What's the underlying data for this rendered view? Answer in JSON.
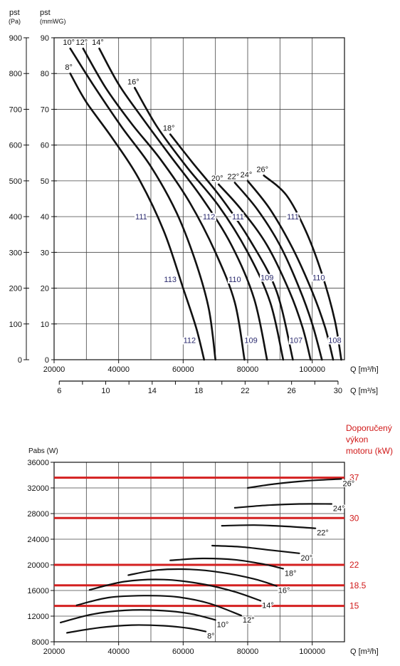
{
  "chart_data": [
    {
      "type": "line",
      "ylabel_pa": "pst\n(Pa)",
      "ylabel_mm": "pst\n(mmWG)",
      "xlabel": "Q [m³/h]",
      "x2label": "Q [m³/s]",
      "xlim": [
        20000,
        110000
      ],
      "ylim_pa": [
        0,
        900
      ],
      "ylim_mm": [
        0,
        90
      ],
      "xticks": [
        20000,
        40000,
        60000,
        80000,
        100000
      ],
      "x2ticks": [
        6,
        10,
        14,
        18,
        22,
        26,
        30
      ],
      "yticks_pa": [
        0,
        100,
        200,
        300,
        400,
        500,
        600,
        700,
        800,
        900
      ],
      "yticks_mm": [
        0,
        10,
        20,
        30,
        40,
        50,
        60,
        70,
        80,
        90
      ],
      "grid": true,
      "series": [
        {
          "name": "8°",
          "points": [
            [
              25000,
              800
            ],
            [
              30000,
              720
            ],
            [
              38000,
              620
            ],
            [
              46000,
              510
            ],
            [
              54000,
              360
            ],
            [
              60000,
              200
            ],
            [
              64000,
              90
            ],
            [
              66500,
              0
            ]
          ]
        },
        {
          "name": "10°",
          "points": [
            [
              25000,
              870
            ],
            [
              32000,
              770
            ],
            [
              41000,
              650
            ],
            [
              50000,
              540
            ],
            [
              58000,
              410
            ],
            [
              64000,
              270
            ],
            [
              68000,
              140
            ],
            [
              70000,
              0
            ]
          ]
        },
        {
          "name": "12°",
          "points": [
            [
              29000,
              870
            ],
            [
              36000,
              760
            ],
            [
              44000,
              660
            ],
            [
              53000,
              560
            ],
            [
              62000,
              440
            ],
            [
              70000,
              300
            ],
            [
              76000,
              160
            ],
            [
              79000,
              0
            ]
          ]
        },
        {
          "name": "14°",
          "points": [
            [
              34000,
              870
            ],
            [
              40000,
              770
            ],
            [
              47000,
              680
            ],
            [
              56000,
              570
            ],
            [
              66000,
              450
            ],
            [
              75000,
              320
            ],
            [
              82000,
              170
            ],
            [
              86000,
              0
            ]
          ]
        },
        {
          "name": "16°",
          "points": [
            [
              45000,
              760
            ],
            [
              52000,
              650
            ],
            [
              61000,
              540
            ],
            [
              71000,
              430
            ],
            [
              80000,
              300
            ],
            [
              87000,
              160
            ],
            [
              91000,
              0
            ]
          ]
        },
        {
          "name": "18°",
          "points": [
            [
              56000,
              630
            ],
            [
              63000,
              550
            ],
            [
              72000,
              450
            ],
            [
              81000,
              330
            ],
            [
              89000,
              190
            ],
            [
              94000,
              0
            ]
          ]
        },
        {
          "name": "20°",
          "points": [
            [
              71000,
              490
            ],
            [
              78000,
              420
            ],
            [
              86000,
              320
            ],
            [
              93000,
              190
            ],
            [
              97000,
              90
            ],
            [
              99500,
              0
            ]
          ]
        },
        {
          "name": "22°",
          "points": [
            [
              76000,
              495
            ],
            [
              83000,
              420
            ],
            [
              90000,
              320
            ],
            [
              96000,
              200
            ],
            [
              100000,
              100
            ],
            [
              103000,
              0
            ]
          ]
        },
        {
          "name": "24°",
          "points": [
            [
              80000,
              500
            ],
            [
              87000,
              420
            ],
            [
              94000,
              310
            ],
            [
              100000,
              190
            ],
            [
              104000,
              90
            ],
            [
              106500,
              0
            ]
          ]
        },
        {
          "name": "26°",
          "points": [
            [
              85000,
              515
            ],
            [
              92000,
              460
            ],
            [
              98000,
              360
            ],
            [
              103000,
              240
            ],
            [
              107000,
              110
            ],
            [
              109000,
              0
            ]
          ]
        }
      ],
      "curve_labels": [
        {
          "text": "111",
          "x": 47000,
          "y": 400
        },
        {
          "text": "113",
          "x": 56000,
          "y": 225
        },
        {
          "text": "112",
          "x": 62000,
          "y": 55
        },
        {
          "text": "112",
          "x": 68000,
          "y": 400
        },
        {
          "text": "111",
          "x": 77000,
          "y": 400
        },
        {
          "text": "110",
          "x": 76000,
          "y": 225
        },
        {
          "text": "109",
          "x": 81000,
          "y": 55
        },
        {
          "text": "109",
          "x": 86000,
          "y": 230
        },
        {
          "text": "107",
          "x": 95000,
          "y": 55
        },
        {
          "text": "111",
          "x": 94000,
          "y": 400
        },
        {
          "text": "110",
          "x": 102000,
          "y": 230
        },
        {
          "text": "108",
          "x": 107000,
          "y": 55
        }
      ]
    },
    {
      "type": "line",
      "ylabel": "Pabs (W)",
      "xlabel": "Q [m³/h]",
      "xlim": [
        20000,
        110000
      ],
      "ylim": [
        8000,
        36000
      ],
      "xticks": [
        20000,
        40000,
        60000,
        80000,
        100000
      ],
      "yticks": [
        8000,
        12000,
        16000,
        20000,
        24000,
        28000,
        32000,
        36000
      ],
      "grid": true,
      "right_axis_title": [
        "Doporučený",
        "výkon",
        "motoru (kW)"
      ],
      "motor_lines": [
        {
          "label": "37",
          "value": 33600
        },
        {
          "label": "30",
          "value": 27300
        },
        {
          "label": "22",
          "value": 20000
        },
        {
          "label": "18.5",
          "value": 16800
        },
        {
          "label": "15",
          "value": 13600
        }
      ],
      "series": [
        {
          "name": "8°",
          "points": [
            [
              24000,
              9400
            ],
            [
              34000,
              10200
            ],
            [
              44000,
              10600
            ],
            [
              54000,
              10500
            ],
            [
              62000,
              10100
            ],
            [
              67000,
              9600
            ]
          ]
        },
        {
          "name": "10°",
          "points": [
            [
              22000,
              11000
            ],
            [
              32000,
              12300
            ],
            [
              42000,
              12900
            ],
            [
              52000,
              12900
            ],
            [
              62000,
              12400
            ],
            [
              70000,
              11400
            ]
          ]
        },
        {
          "name": "12°",
          "points": [
            [
              27000,
              13700
            ],
            [
              37000,
              14900
            ],
            [
              48000,
              15200
            ],
            [
              58000,
              15000
            ],
            [
              68000,
              14000
            ],
            [
              78000,
              12100
            ]
          ]
        },
        {
          "name": "14°",
          "points": [
            [
              31000,
              16100
            ],
            [
              42000,
              17400
            ],
            [
              54000,
              17700
            ],
            [
              66000,
              17000
            ],
            [
              76000,
              15800
            ],
            [
              84000,
              14400
            ]
          ]
        },
        {
          "name": "16°",
          "points": [
            [
              43000,
              18400
            ],
            [
              52000,
              19200
            ],
            [
              62000,
              19300
            ],
            [
              72000,
              18800
            ],
            [
              82000,
              17800
            ],
            [
              89000,
              16700
            ]
          ]
        },
        {
          "name": "18°",
          "points": [
            [
              56000,
              20700
            ],
            [
              66000,
              21000
            ],
            [
              76000,
              20800
            ],
            [
              85000,
              20100
            ],
            [
              91000,
              19400
            ]
          ]
        },
        {
          "name": "20°",
          "points": [
            [
              69000,
              23000
            ],
            [
              78000,
              22800
            ],
            [
              87000,
              22300
            ],
            [
              96000,
              21800
            ]
          ]
        },
        {
          "name": "22°",
          "points": [
            [
              72000,
              26100
            ],
            [
              82000,
              26200
            ],
            [
              92000,
              26000
            ],
            [
              101000,
              25700
            ]
          ]
        },
        {
          "name": "24°",
          "points": [
            [
              76000,
              28900
            ],
            [
              86000,
              29300
            ],
            [
              96000,
              29500
            ],
            [
              106000,
              29500
            ]
          ]
        },
        {
          "name": "26°",
          "points": [
            [
              80000,
              32000
            ],
            [
              88000,
              32600
            ],
            [
              98000,
              33100
            ],
            [
              109000,
              33400
            ]
          ]
        }
      ]
    }
  ]
}
